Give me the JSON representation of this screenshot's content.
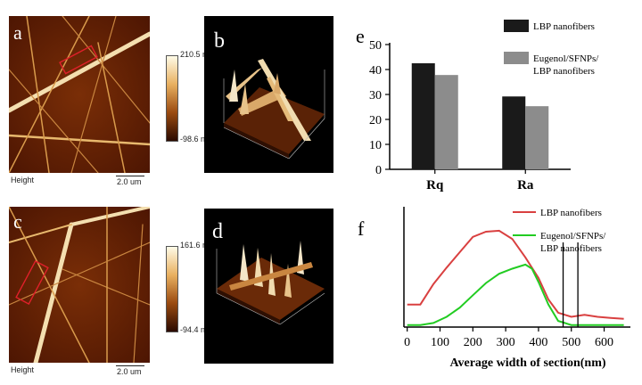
{
  "panels": {
    "a": {
      "label": "a",
      "cbar_max": "210.5 nm",
      "cbar_min": "-98.6 nm",
      "channel": "Height",
      "scale": "2.0 um"
    },
    "b": {
      "label": "b"
    },
    "c": {
      "label": "c",
      "cbar_max": "161.6 nm",
      "cbar_min": "-94.4 nm",
      "channel": "Height",
      "scale": "2.0 um"
    },
    "d": {
      "label": "d"
    }
  },
  "chart_data": [
    {
      "panel": "e",
      "type": "bar",
      "categories": [
        "Rq",
        "Ra"
      ],
      "series": [
        {
          "name": "LBP nanofibers",
          "values": [
            42.5,
            29.2
          ],
          "color": "#1a1a1a"
        },
        {
          "name": "Eugenol/SFNPs/LBP nanofibers",
          "values": [
            37.8,
            25.3
          ],
          "color": "#8c8c8c"
        }
      ],
      "legend_lines": [
        [
          "LBP nanofibers"
        ],
        [
          "Eugenol/SFNPs/",
          "LBP nanofibers"
        ]
      ],
      "yticks": [
        0,
        10,
        20,
        30,
        40,
        50
      ],
      "ylim": [
        0,
        50
      ],
      "legend": "top-right"
    },
    {
      "panel": "f",
      "type": "line",
      "xlabel": "Average width of section(nm)",
      "xticks": [
        0,
        100,
        200,
        300,
        400,
        500,
        600
      ],
      "xlim": [
        -10,
        680
      ],
      "ylim": [
        0,
        100
      ],
      "series": [
        {
          "name": "LBP nanofibers",
          "color": "#d94040",
          "x": [
            0,
            40,
            80,
            120,
            160,
            200,
            240,
            280,
            320,
            360,
            400,
            430,
            460,
            480,
            500,
            540,
            580,
            620,
            660
          ],
          "y": [
            22,
            22,
            42,
            58,
            73,
            88,
            93,
            94,
            86,
            68,
            48,
            27,
            14,
            12,
            10,
            12,
            10,
            9,
            8
          ]
        },
        {
          "name": "Eugenol/SFNPs/LBP nanofibers",
          "color": "#22cc22",
          "x": [
            0,
            40,
            80,
            120,
            160,
            200,
            240,
            280,
            320,
            360,
            380,
            400,
            430,
            460,
            500,
            540,
            580,
            620,
            660
          ],
          "y": [
            2,
            2,
            4,
            10,
            19,
            31,
            43,
            52,
            57,
            61,
            57,
            44,
            22,
            6,
            2,
            2,
            2,
            2,
            2
          ]
        }
      ],
      "legend_lines": [
        [
          "LBP nanofibers"
        ],
        [
          "Eugenol/SFNPs/",
          "LBP nanofibers"
        ]
      ],
      "vlines": [
        475,
        520
      ],
      "legend": "top-right"
    }
  ]
}
